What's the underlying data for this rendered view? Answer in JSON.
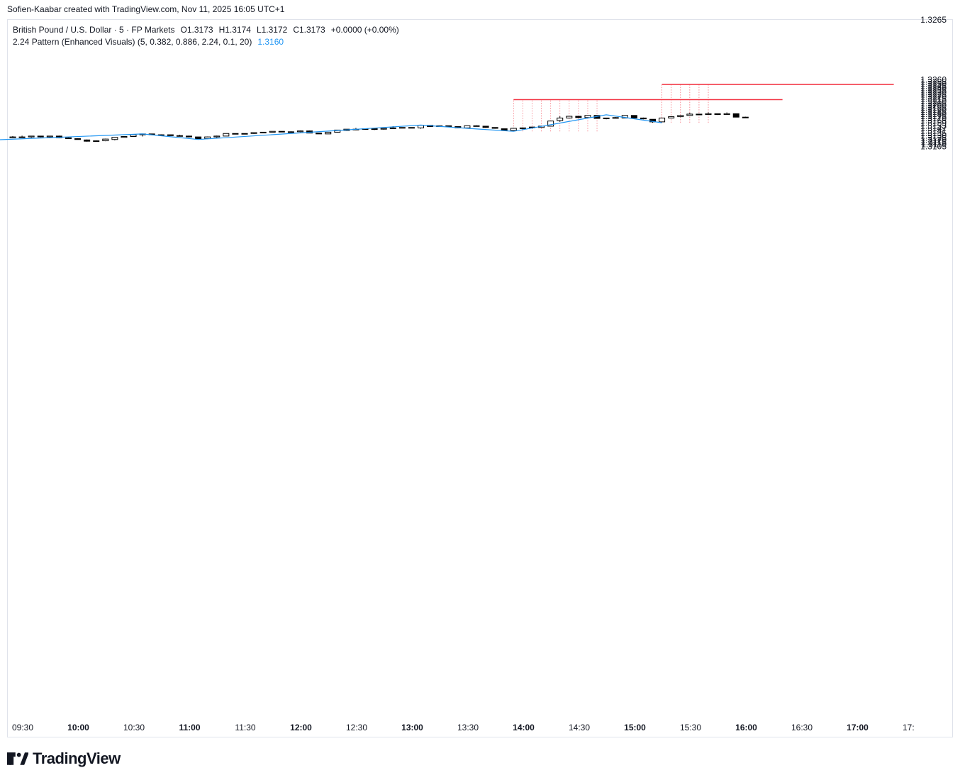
{
  "header": {
    "credit": "Sofien-Kaabar created with TradingView.com, Nov 11, 2025 16:05 UTC+1"
  },
  "legend": {
    "symbol": "British Pound / U.S. Dollar · 5 · FP Markets",
    "open": "O1.3173",
    "high": "H1.3174",
    "low": "L1.3172",
    "close": "C1.3173",
    "change": "+0.0000 (+0.00%)",
    "indicator": "2.24 Pattern (Enhanced Visuals) (5, 0.382, 0.886, 2.24, 0.1, 20)",
    "indicator_value": "1.3160"
  },
  "branding": {
    "logo_text": "TradingView",
    "icon": "tradingview-logo-icon"
  },
  "colors": {
    "bull_fill": "#ffffff",
    "bear_fill": "#000000",
    "candle_border": "#000000",
    "zigzag": "#2196f3",
    "target_line": "#f23645",
    "indicator_value": "#2196f3"
  },
  "chart_data": {
    "type": "candlestick",
    "interval": "5",
    "y_axis": {
      "ticks": [
        "1.3260",
        "1.3255",
        "1.3250",
        "1.3245",
        "1.3240",
        "1.3235",
        "1.3230",
        "1.3225",
        "1.3220",
        "1.3215",
        "1.3210",
        "1.3205",
        "1.3200",
        "1.3195",
        "1.3190",
        "1.3185",
        "1.3180",
        "1.3175",
        "1.3170",
        "1.3165",
        "1.3159",
        "1.3153",
        "1.3147",
        "1.3141",
        "1.3135",
        "1.3130",
        "1.3125",
        "1.3120",
        "1.3115",
        "1.3110",
        "1.3105"
      ],
      "partial_top_tick": "1.3265"
    },
    "x_axis": {
      "ticks": [
        {
          "label": "09:30",
          "bold": false
        },
        {
          "label": "10:00",
          "bold": true
        },
        {
          "label": "10:30",
          "bold": false
        },
        {
          "label": "11:00",
          "bold": true
        },
        {
          "label": "11:30",
          "bold": false
        },
        {
          "label": "12:00",
          "bold": true
        },
        {
          "label": "12:30",
          "bold": false
        },
        {
          "label": "13:00",
          "bold": true
        },
        {
          "label": "13:30",
          "bold": false
        },
        {
          "label": "14:00",
          "bold": true
        },
        {
          "label": "14:30",
          "bold": false
        },
        {
          "label": "15:00",
          "bold": true
        },
        {
          "label": "15:30",
          "bold": false
        },
        {
          "label": "16:00",
          "bold": true
        },
        {
          "label": "16:30",
          "bold": false
        },
        {
          "label": "17:00",
          "bold": true
        },
        {
          "label": "17:",
          "bold": false
        }
      ]
    },
    "candles": [
      {
        "o": 1.3125,
        "h": 1.3129,
        "l": 1.3124,
        "c": 1.3127
      },
      {
        "o": 1.3127,
        "h": 1.313,
        "l": 1.3125,
        "c": 1.3127
      },
      {
        "o": 1.3127,
        "h": 1.3129,
        "l": 1.3125,
        "c": 1.3129
      },
      {
        "o": 1.3129,
        "h": 1.3129,
        "l": 1.3126,
        "c": 1.3127
      },
      {
        "o": 1.3127,
        "h": 1.3129,
        "l": 1.3124,
        "c": 1.3129
      },
      {
        "o": 1.3129,
        "h": 1.313,
        "l": 1.3124,
        "c": 1.3125
      },
      {
        "o": 1.3125,
        "h": 1.3126,
        "l": 1.3123,
        "c": 1.3123
      },
      {
        "o": 1.3123,
        "h": 1.3124,
        "l": 1.3121,
        "c": 1.3121
      },
      {
        "o": 1.312,
        "h": 1.3121,
        "l": 1.3116,
        "c": 1.3117
      },
      {
        "o": 1.3118,
        "h": 1.3119,
        "l": 1.3116,
        "c": 1.3118
      },
      {
        "o": 1.3118,
        "h": 1.3123,
        "l": 1.3117,
        "c": 1.3122
      },
      {
        "o": 1.3121,
        "h": 1.3126,
        "l": 1.3119,
        "c": 1.3126
      },
      {
        "o": 1.3126,
        "h": 1.3128,
        "l": 1.3126,
        "c": 1.3128
      },
      {
        "o": 1.3128,
        "h": 1.3133,
        "l": 1.3127,
        "c": 1.3132
      },
      {
        "o": 1.3132,
        "h": 1.3134,
        "l": 1.3128,
        "c": 1.3134
      },
      {
        "o": 1.3134,
        "h": 1.3134,
        "l": 1.3131,
        "c": 1.3132
      },
      {
        "o": 1.3132,
        "h": 1.3133,
        "l": 1.3131,
        "c": 1.3132
      },
      {
        "o": 1.3132,
        "h": 1.3132,
        "l": 1.313,
        "c": 1.313
      },
      {
        "o": 1.313,
        "h": 1.3132,
        "l": 1.3128,
        "c": 1.3129
      },
      {
        "o": 1.3129,
        "h": 1.313,
        "l": 1.3126,
        "c": 1.3127
      },
      {
        "o": 1.3127,
        "h": 1.3127,
        "l": 1.3122,
        "c": 1.3123
      },
      {
        "o": 1.3123,
        "h": 1.3128,
        "l": 1.3122,
        "c": 1.3127
      },
      {
        "o": 1.3127,
        "h": 1.313,
        "l": 1.3125,
        "c": 1.3129
      },
      {
        "o": 1.3129,
        "h": 1.3135,
        "l": 1.3129,
        "c": 1.3135
      },
      {
        "o": 1.3135,
        "h": 1.3135,
        "l": 1.3134,
        "c": 1.3135
      },
      {
        "o": 1.3135,
        "h": 1.3135,
        "l": 1.3133,
        "c": 1.3135
      },
      {
        "o": 1.3135,
        "h": 1.3137,
        "l": 1.3134,
        "c": 1.3137
      },
      {
        "o": 1.3137,
        "h": 1.3138,
        "l": 1.3136,
        "c": 1.3138
      },
      {
        "o": 1.3138,
        "h": 1.314,
        "l": 1.3138,
        "c": 1.314
      },
      {
        "o": 1.314,
        "h": 1.314,
        "l": 1.3138,
        "c": 1.3139
      },
      {
        "o": 1.3139,
        "h": 1.314,
        "l": 1.3139,
        "c": 1.3139
      },
      {
        "o": 1.3139,
        "h": 1.3142,
        "l": 1.3138,
        "c": 1.3141
      },
      {
        "o": 1.3141,
        "h": 1.3142,
        "l": 1.3136,
        "c": 1.3136
      },
      {
        "o": 1.3136,
        "h": 1.3136,
        "l": 1.3134,
        "c": 1.3134
      },
      {
        "o": 1.3134,
        "h": 1.3138,
        "l": 1.3134,
        "c": 1.3138
      },
      {
        "o": 1.3138,
        "h": 1.3143,
        "l": 1.3137,
        "c": 1.3143
      },
      {
        "o": 1.3142,
        "h": 1.3145,
        "l": 1.3141,
        "c": 1.3145
      },
      {
        "o": 1.3145,
        "h": 1.3148,
        "l": 1.3143,
        "c": 1.3145
      },
      {
        "o": 1.3145,
        "h": 1.3146,
        "l": 1.3144,
        "c": 1.3146
      },
      {
        "o": 1.3146,
        "h": 1.3146,
        "l": 1.3143,
        "c": 1.3145
      },
      {
        "o": 1.3145,
        "h": 1.3147,
        "l": 1.3144,
        "c": 1.3147
      },
      {
        "o": 1.3147,
        "h": 1.3152,
        "l": 1.3146,
        "c": 1.3148
      },
      {
        "o": 1.3148,
        "h": 1.3149,
        "l": 1.3147,
        "c": 1.3149
      },
      {
        "o": 1.3149,
        "h": 1.3149,
        "l": 1.3147,
        "c": 1.3148
      },
      {
        "o": 1.3148,
        "h": 1.3154,
        "l": 1.3146,
        "c": 1.3154
      },
      {
        "o": 1.3154,
        "h": 1.3154,
        "l": 1.3151,
        "c": 1.3151
      },
      {
        "o": 1.3151,
        "h": 1.3153,
        "l": 1.3151,
        "c": 1.3153
      },
      {
        "o": 1.3153,
        "h": 1.3153,
        "l": 1.315,
        "c": 1.3151
      },
      {
        "o": 1.3151,
        "h": 1.3151,
        "l": 1.3147,
        "c": 1.3148
      },
      {
        "o": 1.3148,
        "h": 1.3153,
        "l": 1.3148,
        "c": 1.3153
      },
      {
        "o": 1.3153,
        "h": 1.3154,
        "l": 1.3152,
        "c": 1.3152
      },
      {
        "o": 1.3152,
        "h": 1.3152,
        "l": 1.3148,
        "c": 1.3149
      },
      {
        "o": 1.3149,
        "h": 1.3149,
        "l": 1.3146,
        "c": 1.3147
      },
      {
        "o": 1.3146,
        "h": 1.3146,
        "l": 1.3141,
        "c": 1.3142
      },
      {
        "o": 1.3142,
        "h": 1.3148,
        "l": 1.3142,
        "c": 1.3147
      },
      {
        "o": 1.3147,
        "h": 1.3149,
        "l": 1.3144,
        "c": 1.3148
      },
      {
        "o": 1.3149,
        "h": 1.315,
        "l": 1.3146,
        "c": 1.315
      },
      {
        "o": 1.3149,
        "h": 1.3152,
        "l": 1.3149,
        "c": 1.3152
      },
      {
        "o": 1.3152,
        "h": 1.3164,
        "l": 1.3152,
        "c": 1.3164
      },
      {
        "o": 1.3165,
        "h": 1.3175,
        "l": 1.3162,
        "c": 1.3171
      },
      {
        "o": 1.3171,
        "h": 1.3175,
        "l": 1.317,
        "c": 1.3175
      },
      {
        "o": 1.3175,
        "h": 1.3175,
        "l": 1.3171,
        "c": 1.3172
      },
      {
        "o": 1.3172,
        "h": 1.3177,
        "l": 1.3171,
        "c": 1.3177
      },
      {
        "o": 1.3177,
        "h": 1.3177,
        "l": 1.317,
        "c": 1.317
      },
      {
        "o": 1.317,
        "h": 1.3171,
        "l": 1.3168,
        "c": 1.3171
      },
      {
        "o": 1.3171,
        "h": 1.3173,
        "l": 1.317,
        "c": 1.3172
      },
      {
        "o": 1.3171,
        "h": 1.3177,
        "l": 1.3171,
        "c": 1.3177
      },
      {
        "o": 1.3177,
        "h": 1.3177,
        "l": 1.3171,
        "c": 1.3171
      },
      {
        "o": 1.3171,
        "h": 1.3172,
        "l": 1.3168,
        "c": 1.3169
      },
      {
        "o": 1.3168,
        "h": 1.3168,
        "l": 1.316,
        "c": 1.3162
      },
      {
        "o": 1.3162,
        "h": 1.3171,
        "l": 1.3162,
        "c": 1.3171
      },
      {
        "o": 1.3171,
        "h": 1.3175,
        "l": 1.317,
        "c": 1.3174
      },
      {
        "o": 1.3174,
        "h": 1.3178,
        "l": 1.3173,
        "c": 1.3177
      },
      {
        "o": 1.3177,
        "h": 1.3183,
        "l": 1.3177,
        "c": 1.318
      },
      {
        "o": 1.3179,
        "h": 1.3181,
        "l": 1.3178,
        "c": 1.318
      },
      {
        "o": 1.3179,
        "h": 1.3184,
        "l": 1.3179,
        "c": 1.3181
      },
      {
        "o": 1.3181,
        "h": 1.3181,
        "l": 1.3178,
        "c": 1.3179
      },
      {
        "o": 1.3179,
        "h": 1.3184,
        "l": 1.3179,
        "c": 1.3181
      },
      {
        "o": 1.3181,
        "h": 1.3181,
        "l": 1.3173,
        "c": 1.3173
      },
      {
        "o": 1.3173,
        "h": 1.3174,
        "l": 1.3172,
        "c": 1.3173
      }
    ],
    "zigzag": [
      {
        "bar": -2,
        "price": 1.312
      },
      {
        "bar": 14,
        "price": 1.3134
      },
      {
        "bar": 20,
        "price": 1.3121
      },
      {
        "bar": 44,
        "price": 1.31545
      },
      {
        "bar": 49,
        "price": 1.3147
      },
      {
        "bar": 54,
        "price": 1.314
      },
      {
        "bar": 64,
        "price": 1.31785
      },
      {
        "bar": 70,
        "price": 1.316
      }
    ],
    "target_lines": [
      {
        "price": 1.32138,
        "from_bar": 54,
        "to_bar": 83
      },
      {
        "price": 1.32489,
        "from_bar": 70,
        "to_bar": 95
      }
    ],
    "projection_columns": [
      {
        "bars": [
          54,
          55,
          56,
          57,
          58,
          59,
          60,
          61,
          62,
          63
        ],
        "from_price": 1.314,
        "to_price": 1.32138
      },
      {
        "bars": [
          70,
          71,
          72,
          73,
          74,
          75
        ],
        "from_price": 1.316,
        "to_price": 1.32489
      }
    ]
  }
}
